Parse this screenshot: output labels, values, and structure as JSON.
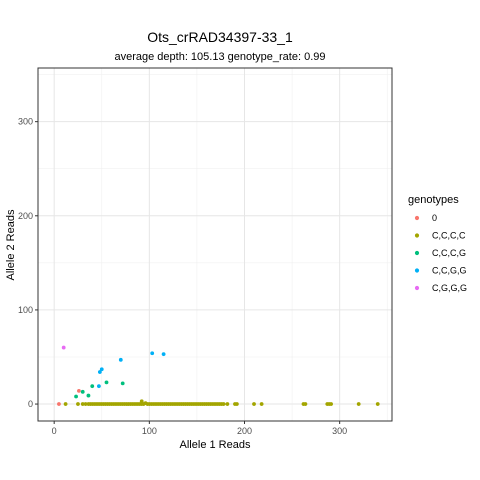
{
  "chart_data": {
    "type": "scatter",
    "title": "Ots_crRAD34397-33_1",
    "subtitle": "average depth:  105.13  genotype_rate:  0.99",
    "xlabel": "Allele 1 Reads",
    "ylabel": "Allele 2 Reads",
    "xlim": [
      -17,
      355
    ],
    "ylim": [
      -18,
      357
    ],
    "x_ticks": [
      0,
      100,
      200,
      300
    ],
    "y_ticks": [
      0,
      100,
      200,
      300
    ],
    "grid": true,
    "legend": {
      "title": "genotypes",
      "placement": "right"
    },
    "series": [
      {
        "name": "0",
        "color": "#F8766D",
        "points": [
          [
            5,
            0
          ],
          [
            26,
            14
          ]
        ]
      },
      {
        "name": "C,C,C,C",
        "color": "#A3A500",
        "points": [
          [
            12,
            0
          ],
          [
            25,
            0
          ],
          [
            30,
            0
          ],
          [
            33,
            0
          ],
          [
            36,
            0
          ],
          [
            38,
            0
          ],
          [
            40,
            0
          ],
          [
            42,
            0
          ],
          [
            44,
            0
          ],
          [
            46,
            0
          ],
          [
            48,
            0
          ],
          [
            50,
            0
          ],
          [
            52,
            0
          ],
          [
            54,
            0
          ],
          [
            56,
            0
          ],
          [
            58,
            0
          ],
          [
            60,
            0
          ],
          [
            62,
            0
          ],
          [
            64,
            0
          ],
          [
            66,
            0
          ],
          [
            68,
            0
          ],
          [
            70,
            0
          ],
          [
            72,
            0
          ],
          [
            74,
            0
          ],
          [
            76,
            0
          ],
          [
            78,
            0
          ],
          [
            80,
            0
          ],
          [
            82,
            0
          ],
          [
            84,
            0
          ],
          [
            86,
            0
          ],
          [
            88,
            0
          ],
          [
            90,
            0
          ],
          [
            92,
            0
          ],
          [
            94,
            0
          ],
          [
            96,
            1
          ],
          [
            98,
            0
          ],
          [
            100,
            0
          ],
          [
            102,
            0
          ],
          [
            104,
            0
          ],
          [
            106,
            0
          ],
          [
            108,
            0
          ],
          [
            110,
            0
          ],
          [
            112,
            0
          ],
          [
            114,
            0
          ],
          [
            116,
            0
          ],
          [
            118,
            0
          ],
          [
            120,
            0
          ],
          [
            122,
            0
          ],
          [
            124,
            0
          ],
          [
            126,
            0
          ],
          [
            128,
            0
          ],
          [
            130,
            0
          ],
          [
            132,
            0
          ],
          [
            134,
            0
          ],
          [
            136,
            0
          ],
          [
            138,
            0
          ],
          [
            140,
            0
          ],
          [
            142,
            0
          ],
          [
            144,
            0
          ],
          [
            146,
            0
          ],
          [
            148,
            0
          ],
          [
            150,
            0
          ],
          [
            152,
            0
          ],
          [
            154,
            0
          ],
          [
            156,
            0
          ],
          [
            158,
            0
          ],
          [
            160,
            0
          ],
          [
            162,
            0
          ],
          [
            164,
            0
          ],
          [
            166,
            0
          ],
          [
            168,
            0
          ],
          [
            170,
            0
          ],
          [
            172,
            0
          ],
          [
            174,
            0
          ],
          [
            176,
            0
          ],
          [
            178,
            0
          ],
          [
            182,
            0
          ],
          [
            190,
            0
          ],
          [
            192,
            0
          ],
          [
            210,
            0
          ],
          [
            218,
            0
          ],
          [
            262,
            0
          ],
          [
            264,
            0
          ],
          [
            287,
            0
          ],
          [
            289,
            0
          ],
          [
            291,
            0
          ],
          [
            320,
            0
          ],
          [
            340,
            0
          ],
          [
            92,
            3
          ]
        ]
      },
      {
        "name": "C,C,C,G",
        "color": "#00BF7D",
        "points": [
          [
            23,
            8
          ],
          [
            36,
            9
          ],
          [
            40,
            19
          ],
          [
            55,
            23
          ],
          [
            72,
            22
          ],
          [
            30,
            13
          ]
        ]
      },
      {
        "name": "C,C,G,G",
        "color": "#00B0F6",
        "points": [
          [
            47,
            19
          ],
          [
            48,
            34
          ],
          [
            50,
            37
          ],
          [
            70,
            47
          ],
          [
            103,
            54
          ],
          [
            115,
            53
          ]
        ]
      },
      {
        "name": "C,G,G,G",
        "color": "#E76BF3",
        "points": [
          [
            10,
            60
          ]
        ]
      }
    ]
  }
}
